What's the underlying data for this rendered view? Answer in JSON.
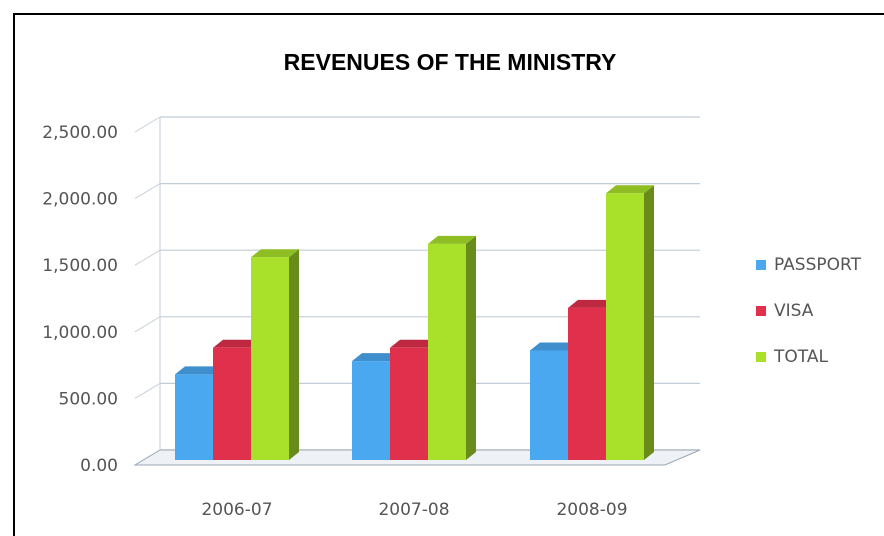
{
  "chart_data": {
    "type": "bar",
    "title": "REVENUES OF THE MINISTRY",
    "categories": [
      "2006-07",
      "2007-08",
      "2008-09"
    ],
    "series": [
      {
        "name": "PASSPORT",
        "color": "#4aa8f0",
        "values": [
          680,
          780,
          860
        ]
      },
      {
        "name": "VISA",
        "color": "#e0304c",
        "values": [
          880,
          880,
          1180
        ]
      },
      {
        "name": "TOTAL",
        "color": "#a8e02a",
        "values": [
          1560,
          1660,
          2040
        ]
      }
    ],
    "ylim": [
      0,
      2500
    ],
    "yticks": [
      "0.00",
      "500.00",
      "1,000.00",
      "1,500.00",
      "2,000.00",
      "2,500.00"
    ],
    "grid": true,
    "legend": "right",
    "style": "3d-columns"
  }
}
